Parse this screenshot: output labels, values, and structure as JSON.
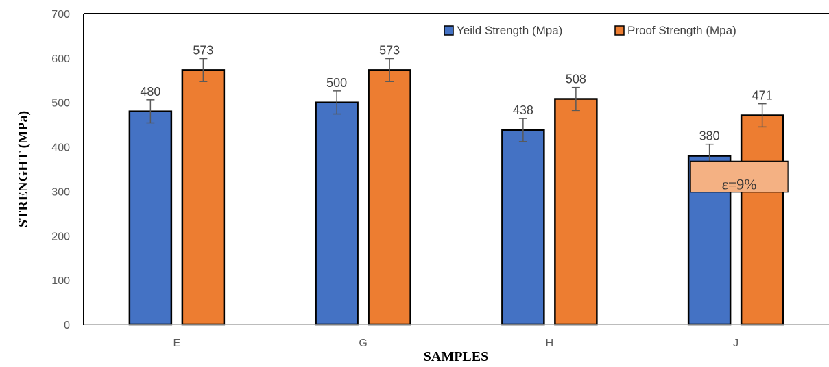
{
  "chart_data": {
    "type": "bar",
    "categories": [
      "E",
      "G",
      "H",
      "J"
    ],
    "series": [
      {
        "name": "Yeild Strength (Mpa)",
        "values": [
          480,
          500,
          438,
          380
        ],
        "error": [
          26,
          26,
          26,
          26
        ],
        "labels": [
          "480",
          "500",
          "438",
          "380"
        ]
      },
      {
        "name": "Proof Strength (Mpa)",
        "values": [
          573,
          573,
          508,
          471
        ],
        "error": [
          26,
          26,
          26,
          26
        ],
        "labels": [
          "573",
          "573",
          "508",
          "471"
        ]
      }
    ],
    "title": "",
    "xlabel": "SAMPLES",
    "ylabel": "STRENGHT (MPa)",
    "ylim": [
      0,
      700
    ],
    "yticks": [
      0,
      100,
      200,
      300,
      400,
      500,
      600,
      700
    ],
    "ytick_labels": [
      "0",
      "100",
      "200",
      "300",
      "400",
      "500",
      "600",
      "700"
    ],
    "grid": false,
    "legend_position": "top-right",
    "annotation": {
      "text": "ε=9%",
      "category": "J",
      "y_range": [
        298,
        368
      ]
    },
    "colors": {
      "series": [
        "#4472C4",
        "#ED7D31"
      ],
      "bar_edge": "#000000",
      "error_bar": "#595959",
      "annotation_fill": "#F4B183"
    }
  }
}
